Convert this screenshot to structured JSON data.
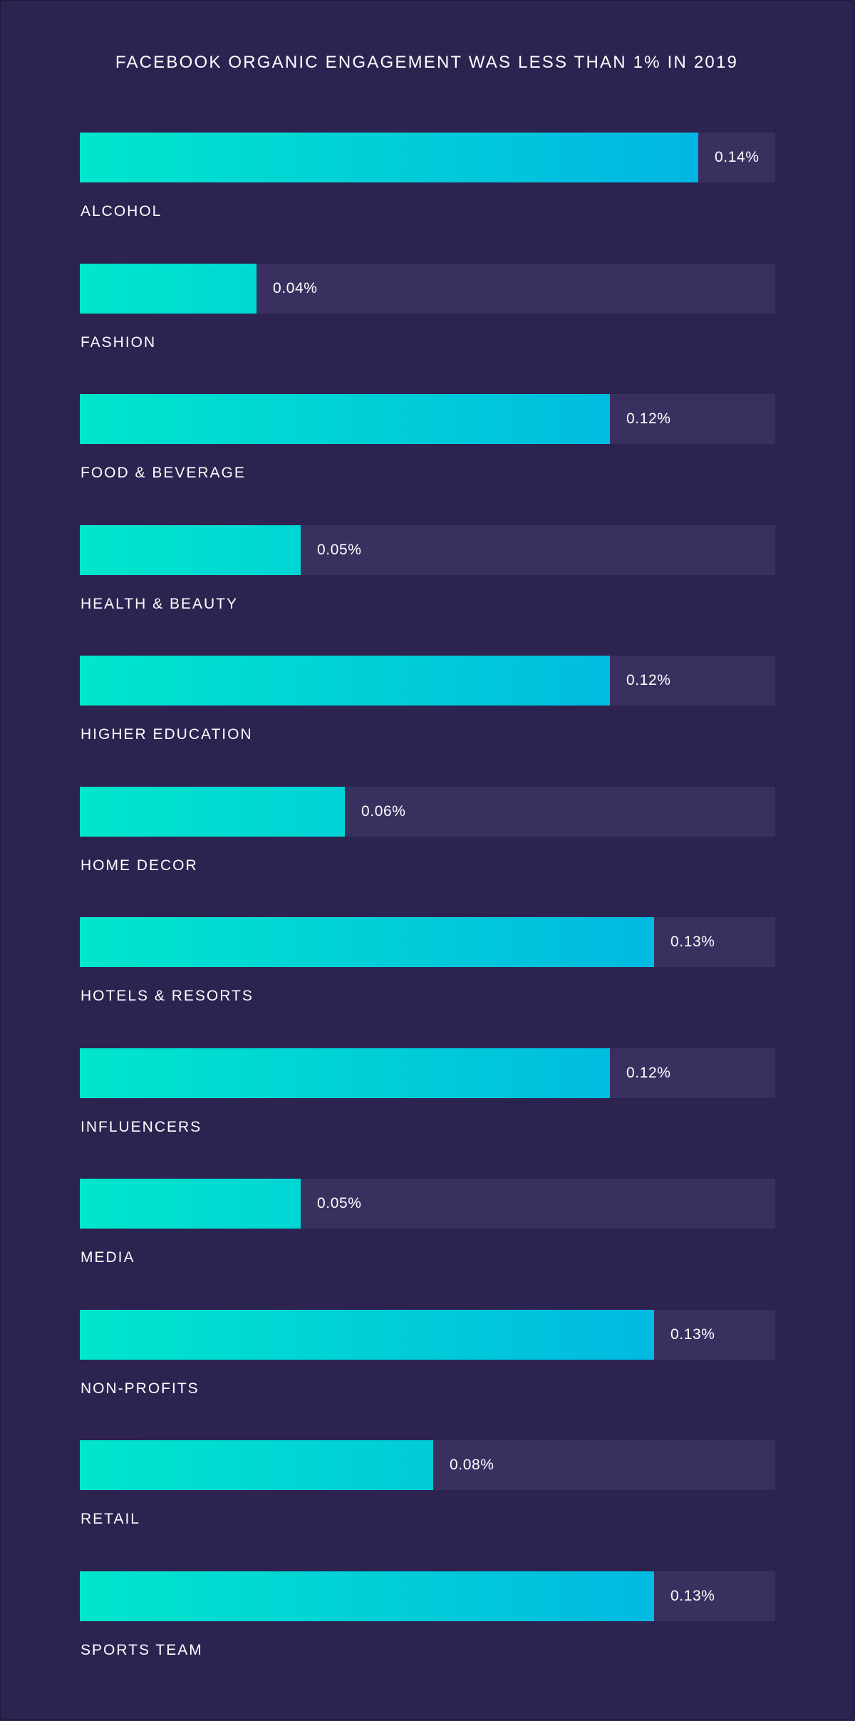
{
  "chart_data": {
    "type": "bar",
    "orientation": "horizontal",
    "title": "FACEBOOK ORGANIC ENGAGEMENT WAS LESS THAN 1% IN 2019",
    "categories": [
      "ALCOHOL",
      "FASHION",
      "FOOD & BEVERAGE",
      "HEALTH & BEAUTY",
      "HIGHER EDUCATION",
      "HOME DECOR",
      "HOTELS & RESORTS",
      "INFLUENCERS",
      "MEDIA",
      "NON-PROFITS",
      "RETAIL",
      "SPORTS TEAM"
    ],
    "values": [
      0.14,
      0.04,
      0.12,
      0.05,
      0.12,
      0.06,
      0.13,
      0.12,
      0.05,
      0.13,
      0.08,
      0.13
    ],
    "value_labels": [
      "0.14%",
      "0.04%",
      "0.12%",
      "0.05%",
      "0.12%",
      "0.06%",
      "0.13%",
      "0.12%",
      "0.05%",
      "0.13%",
      "0.08%",
      "0.13%"
    ],
    "unit": "%",
    "xlim": [
      0,
      0.1575
    ],
    "grid": false,
    "legend": "none",
    "colors": {
      "background": "#2d2350",
      "track": "#3a3060",
      "bar_start": "#00e6cc",
      "bar_end": "#00b0e6",
      "text": "#ffffff"
    }
  }
}
